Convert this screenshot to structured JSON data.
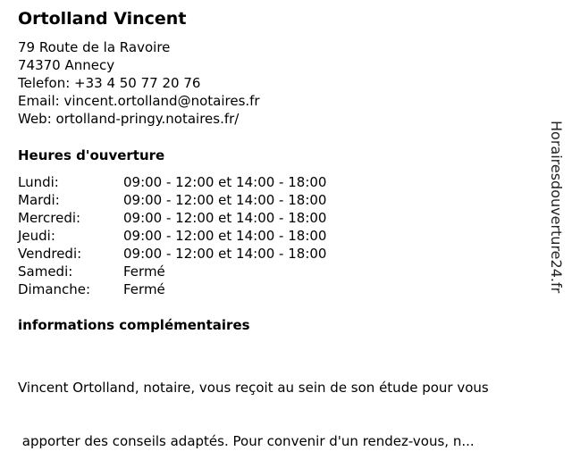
{
  "name": "Ortolland Vincent",
  "address": [
    "79 Route de la Ravoire",
    "74370 Annecy"
  ],
  "phone": "Telefon: +33 4 50 77 20 76",
  "email": "Email: vincent.ortolland@notaires.fr",
  "web": "Web: ortolland-pringy.notaires.fr/",
  "hours_title": "Heures d'ouverture",
  "hours": [
    {
      "day": "Lundi:",
      "time": "09:00 - 12:00 et 14:00 - 18:00"
    },
    {
      "day": "Mardi:",
      "time": "09:00 - 12:00 et 14:00 - 18:00"
    },
    {
      "day": "Mercredi:",
      "time": "09:00 - 12:00 et 14:00 - 18:00"
    },
    {
      "day": "Jeudi:",
      "time": "09:00 - 12:00 et 14:00 - 18:00"
    },
    {
      "day": "Vendredi:",
      "time": "09:00 - 12:00 et 14:00 - 18:00"
    },
    {
      "day": "Samedi:",
      "time": "Fermé"
    },
    {
      "day": "Dimanche:",
      "time": "Fermé"
    }
  ],
  "info_title": "informations complémentaires",
  "info_lines": [
    "Vincent Ortolland, notaire, vous reçoit au sein de son étude pour vous",
    " apporter des conseils adaptés. Pour convenir d'un rendez-vous, n..."
  ],
  "watermark": "Horairesdouverture24.fr"
}
